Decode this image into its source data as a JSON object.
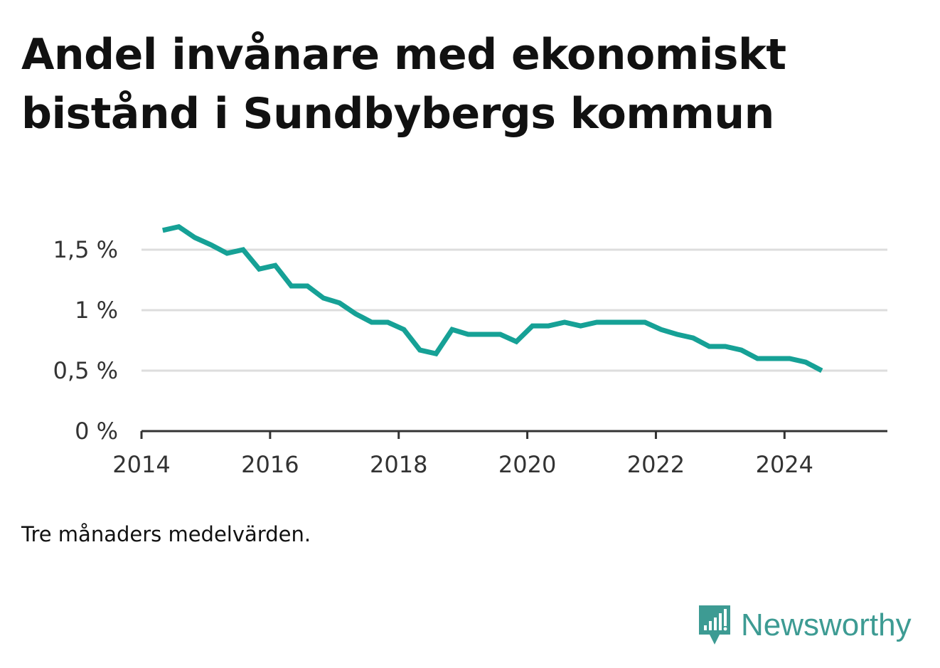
{
  "title": "Andel invånare med ekonomiskt bistånd i Sundbybergs kommun",
  "note": "Tre månaders medelvärden.",
  "brand": {
    "name": "Newsworthy",
    "icon": "newsworthy-logo-icon"
  },
  "colors": {
    "line": "#16a196",
    "grid": "#dddddd",
    "axis": "#333333",
    "brand": "#3d9b93"
  },
  "chart_data": {
    "type": "line",
    "title": "Andel invånare med ekonomiskt bistånd i Sundbybergs kommun",
    "xlabel": "",
    "ylabel": "",
    "xlim": [
      2014.0,
      2025.6
    ],
    "ylim": [
      0,
      1.8
    ],
    "x_ticks": [
      2014,
      2016,
      2018,
      2020,
      2022,
      2024
    ],
    "x_tick_labels": [
      "2014",
      "2016",
      "2018",
      "2020",
      "2022",
      "2024"
    ],
    "y_ticks": [
      0,
      0.5,
      1,
      1.5
    ],
    "y_tick_labels": [
      "0 %",
      "0,5 %",
      "1 %",
      "1,5 %"
    ],
    "grid": true,
    "series": [
      {
        "x": [
          2014.33,
          2014.58,
          2014.83,
          2015.08,
          2015.33,
          2015.58,
          2015.83,
          2016.08,
          2016.33,
          2016.58,
          2016.83,
          2017.08,
          2017.33,
          2017.58,
          2017.83,
          2018.08,
          2018.33,
          2018.58,
          2018.83,
          2019.08,
          2019.33,
          2019.58,
          2019.83,
          2020.08,
          2020.33,
          2020.58,
          2020.83,
          2021.08,
          2021.33,
          2021.58,
          2021.83,
          2022.08,
          2022.33,
          2022.58,
          2022.83,
          2023.08,
          2023.33,
          2023.58,
          2023.83,
          2024.08,
          2024.33,
          2024.58
        ],
        "values": [
          1.66,
          1.69,
          1.6,
          1.54,
          1.47,
          1.5,
          1.34,
          1.37,
          1.2,
          1.2,
          1.1,
          1.06,
          0.97,
          0.9,
          0.9,
          0.84,
          0.67,
          0.64,
          0.84,
          0.8,
          0.8,
          0.8,
          0.74,
          0.87,
          0.87,
          0.9,
          0.87,
          0.9,
          0.9,
          0.9,
          0.9,
          0.84,
          0.8,
          0.77,
          0.7,
          0.7,
          0.67,
          0.6,
          0.6,
          0.6,
          0.57,
          0.5
        ]
      }
    ]
  }
}
